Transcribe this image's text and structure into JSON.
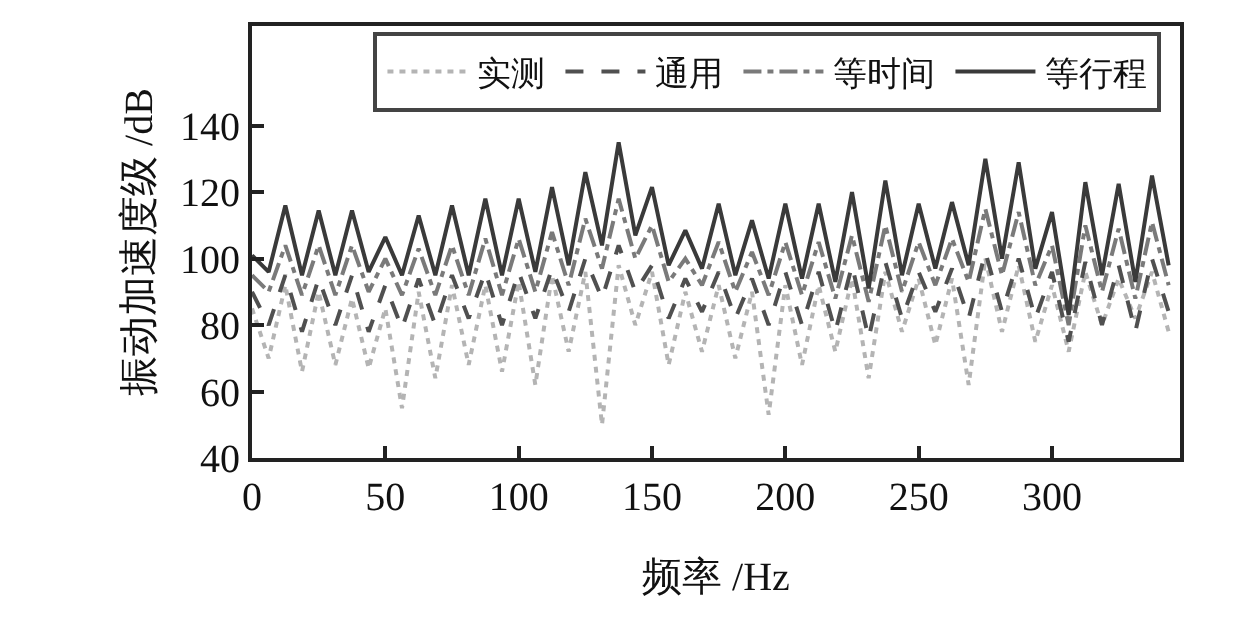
{
  "chart_data": {
    "type": "line",
    "xlabel": "频率 /Hz",
    "ylabel": "振动加速度级 /dB",
    "x": [
      0,
      6.25,
      12.5,
      18.75,
      25,
      31.25,
      37.5,
      43.75,
      50,
      56.25,
      62.5,
      68.75,
      75,
      81.25,
      87.5,
      93.75,
      100,
      106.25,
      112.5,
      118.75,
      125,
      131.25,
      137.5,
      143.75,
      150,
      156.25,
      162.5,
      168.75,
      175,
      181.25,
      187.5,
      193.75,
      200,
      206.25,
      212.5,
      218.75,
      225,
      231.25,
      237.5,
      243.75,
      250,
      256.25,
      262.5,
      268.75,
      275,
      281.25,
      287.5,
      293.75,
      300,
      306.25,
      312.5,
      318.75,
      325,
      331.25,
      337.5,
      343.75
    ],
    "xlim": [
      0,
      348
    ],
    "xticks": [
      0,
      50,
      100,
      150,
      200,
      250,
      300
    ],
    "ylim": [
      40,
      170
    ],
    "yticks": [
      40,
      60,
      80,
      100,
      120,
      140
    ],
    "legend": "top",
    "marker": "none",
    "series": [
      {
        "name": "实测",
        "color": "#b4b4b4",
        "line_style": "dotted",
        "values": [
          85,
          70,
          92,
          66,
          90,
          68,
          88,
          67,
          85,
          55,
          90,
          64,
          92,
          68,
          92,
          66,
          93,
          62,
          95,
          72,
          96,
          50,
          98,
          80,
          96,
          68,
          90,
          72,
          92,
          70,
          90,
          53,
          92,
          68,
          92,
          72,
          94,
          64,
          96,
          78,
          94,
          74,
          94,
          62,
          100,
          78,
          98,
          75,
          92,
          72,
          96,
          80,
          94,
          82,
          96,
          78
        ]
      },
      {
        "name": "通用",
        "color": "#505050",
        "line_style": "dashed",
        "values": [
          90,
          80,
          95,
          78,
          94,
          80,
          95,
          78,
          92,
          79,
          94,
          80,
          95,
          82,
          96,
          80,
          96,
          82,
          97,
          84,
          100,
          88,
          104,
          90,
          98,
          82,
          94,
          84,
          96,
          82,
          94,
          80,
          96,
          80,
          96,
          78,
          98,
          76,
          99,
          82,
          96,
          84,
          97,
          82,
          102,
          84,
          100,
          82,
          96,
          75,
          99,
          80,
          98,
          78,
          100,
          84
        ]
      },
      {
        "name": "等时间",
        "color": "#7a7a7a",
        "line_style": "dashdot",
        "values": [
          95,
          90,
          104,
          89,
          104,
          89,
          104,
          90,
          100,
          89,
          103,
          89,
          104,
          89,
          106,
          89,
          106,
          90,
          108,
          92,
          112,
          97,
          118,
          100,
          110,
          93,
          100,
          92,
          105,
          90,
          102,
          89,
          105,
          89,
          105,
          88,
          107,
          87,
          110,
          90,
          105,
          92,
          106,
          93,
          115,
          95,
          114,
          92,
          104,
          80,
          110,
          90,
          109,
          88,
          111,
          92
        ]
      },
      {
        "name": "等行程",
        "color": "#3a3a3a",
        "line_style": "solid",
        "values": [
          101,
          96,
          116,
          95,
          114.5,
          95,
          114.5,
          96,
          106.5,
          95,
          113,
          95,
          116,
          95,
          118,
          95,
          118,
          96,
          121.5,
          98,
          126,
          104,
          135,
          107,
          121.5,
          98,
          108.5,
          97,
          116.5,
          95,
          111.5,
          94,
          116.5,
          94,
          116.5,
          93,
          120,
          91,
          123.5,
          95,
          116.5,
          97,
          117,
          98,
          130,
          100,
          129,
          97,
          114,
          83,
          123,
          95,
          122.5,
          93,
          125,
          98
        ]
      }
    ]
  }
}
